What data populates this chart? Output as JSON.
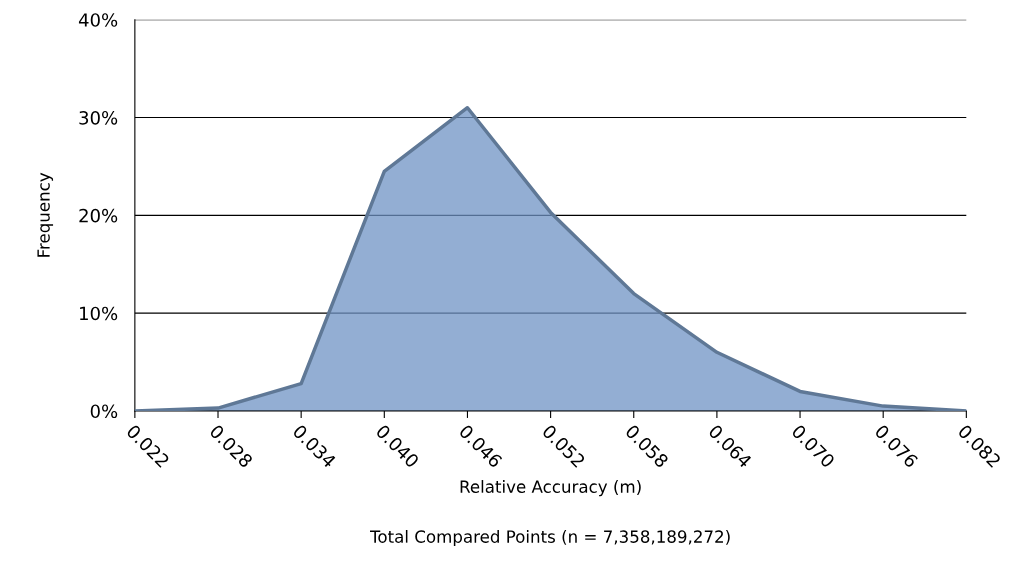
{
  "chart_data": {
    "type": "area",
    "categories": [
      "0.022",
      "0.028",
      "0.034",
      "0.040",
      "0.046",
      "0.052",
      "0.058",
      "0.064",
      "0.070",
      "0.076",
      "0.082"
    ],
    "series": [
      {
        "color": "#6f93c4",
        "values": [
          0,
          0.3,
          2.8,
          24.5,
          31,
          20.3,
          12,
          6,
          2,
          0.5,
          0
        ]
      }
    ],
    "ylim": [
      0,
      40
    ],
    "yticks": [
      {
        "value": 0,
        "label": "0%"
      },
      {
        "value": 10,
        "label": "10%"
      },
      {
        "value": 20,
        "label": "20%"
      },
      {
        "value": 30,
        "label": "30%"
      },
      {
        "value": 40,
        "label": "40%"
      }
    ],
    "grid": "y",
    "xlabel": "Relative Accuracy (m)",
    "ylabel": "Frequency",
    "annotations": [
      "Total Compared Points (n = 7,358,189,272)"
    ]
  }
}
